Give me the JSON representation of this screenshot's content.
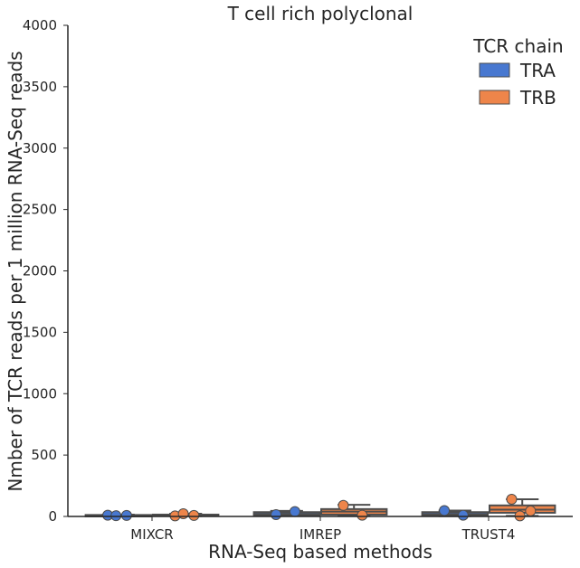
{
  "chart_data": {
    "type": "box",
    "title": "T cell rich polyclonal",
    "xlabel": "RNA-Seq based methods",
    "ylabel": "Nmber of TCR reads per 1 million RNA-Seq reads",
    "ylim": [
      0,
      4000
    ],
    "yticks": [
      0,
      500,
      1000,
      1500,
      2000,
      2500,
      3000,
      3500,
      4000
    ],
    "categories": [
      "MIXCR",
      "IMREP",
      "TRUST4"
    ],
    "legend": {
      "title": "TCR chain",
      "position": "top-right"
    },
    "grid": false,
    "series": [
      {
        "name": "TRA",
        "color": "#4878d0",
        "boxes": [
          {
            "category": "MIXCR",
            "q1": 5,
            "median": 8,
            "q3": 12,
            "whisker_low": 3,
            "whisker_high": 15
          },
          {
            "category": "IMREP",
            "q1": 10,
            "median": 20,
            "q3": 35,
            "whisker_low": 5,
            "whisker_high": 45
          },
          {
            "category": "TRUST4",
            "q1": 8,
            "median": 18,
            "q3": 35,
            "whisker_low": 3,
            "whisker_high": 48
          }
        ],
        "points": [
          {
            "category": "MIXCR",
            "values": [
              10,
              8,
              6
            ]
          },
          {
            "category": "IMREP",
            "values": [
              15,
              40
            ]
          },
          {
            "category": "TRUST4",
            "values": [
              48,
              10
            ]
          }
        ]
      },
      {
        "name": "TRB",
        "color": "#ee854a",
        "boxes": [
          {
            "category": "MIXCR",
            "q1": 5,
            "median": 10,
            "q3": 15,
            "whisker_low": 3,
            "whisker_high": 22
          },
          {
            "category": "IMREP",
            "q1": 15,
            "median": 40,
            "q3": 60,
            "whisker_low": 8,
            "whisker_high": 95
          },
          {
            "category": "TRUST4",
            "q1": 30,
            "median": 55,
            "q3": 90,
            "whisker_low": 5,
            "whisker_high": 140
          }
        ],
        "points": [
          {
            "category": "MIXCR",
            "values": [
              5,
              8,
              22
            ]
          },
          {
            "category": "IMREP",
            "values": [
              90,
              10
            ]
          },
          {
            "category": "TRUST4",
            "values": [
              140,
              45,
              5
            ]
          }
        ]
      }
    ]
  }
}
